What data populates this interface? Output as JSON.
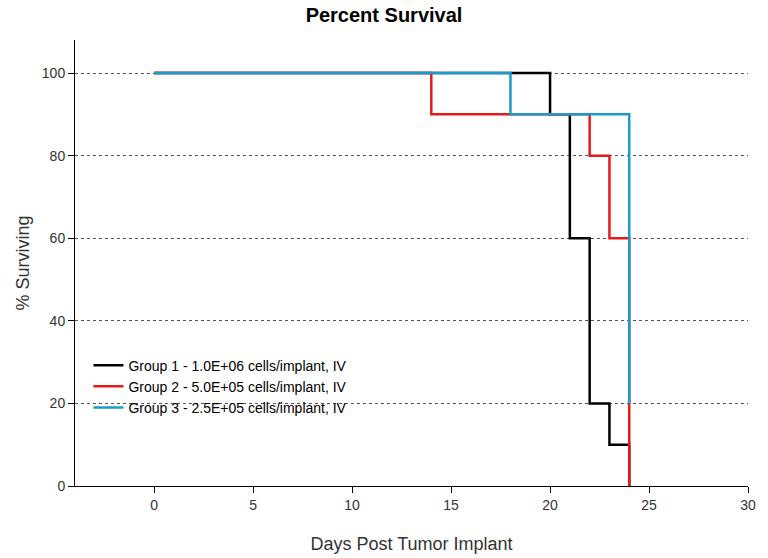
{
  "chart_data": {
    "type": "step",
    "title": "Percent Survival",
    "x_label": "Days Post Tumor Implant",
    "y_label": "% Surviving",
    "series": [
      {
        "name": "Group 1 - 1.0E+06 cells/implant, IV",
        "color": "#000000",
        "x": [
          0,
          20,
          21,
          22,
          23,
          24
        ],
        "values": [
          100,
          90,
          60,
          20,
          10,
          0
        ]
      },
      {
        "name": "Group 2 - 5.0E+05 cells/implant, IV",
        "color": "#e41a1c",
        "x": [
          0,
          14,
          22,
          23,
          24
        ],
        "values": [
          100,
          90,
          80,
          60,
          0
        ]
      },
      {
        "name": "Group 3 - 2.5E+05 cells/implant, IV",
        "color": "#1b9bc9",
        "x": [
          0,
          18,
          24
        ],
        "values": [
          100,
          90,
          20
        ]
      }
    ],
    "xlim": [
      -4,
      30
    ],
    "xticks": [
      0,
      5,
      10,
      15,
      20,
      25,
      30
    ],
    "ylim": [
      0,
      108
    ],
    "yticks": [
      0,
      20,
      40,
      60,
      80,
      100
    ],
    "grid": true,
    "legend": "lower left"
  }
}
